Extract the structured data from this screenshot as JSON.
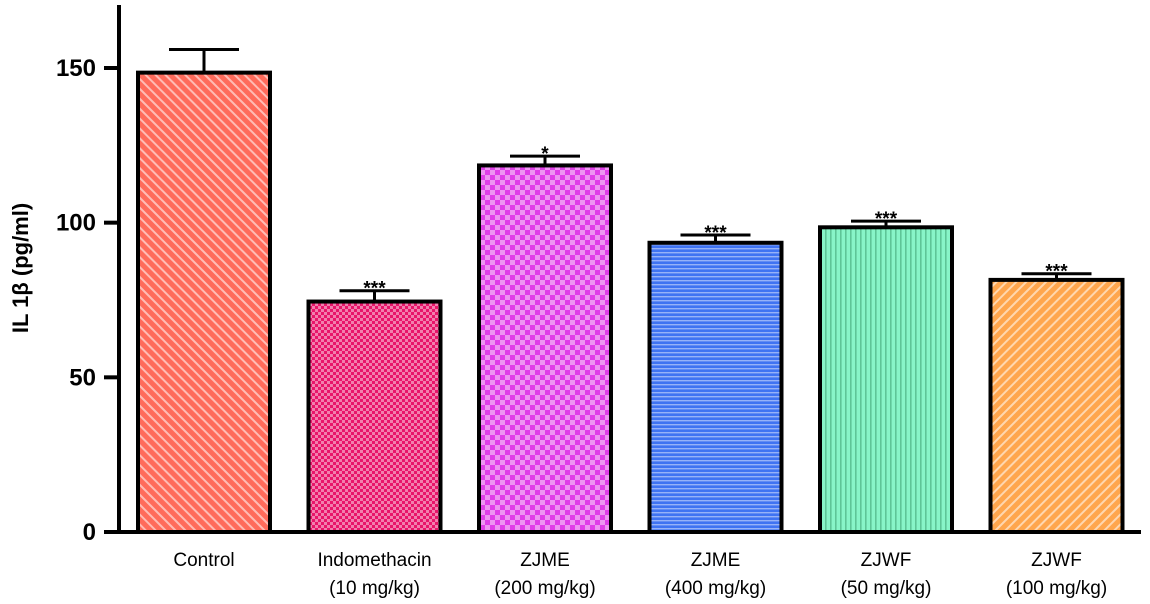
{
  "chart_data": {
    "type": "bar",
    "title": "",
    "xlabel": "",
    "ylabel": "IL 1β (pg/ml)",
    "ylim": [
      0,
      170
    ],
    "yticks": [
      0,
      50,
      100,
      150
    ],
    "categories": [
      [
        "Control"
      ],
      [
        "Indomethacin",
        "(10 mg/kg)"
      ],
      [
        "ZJME",
        "(200 mg/kg)"
      ],
      [
        "ZJME",
        "(400 mg/kg)"
      ],
      [
        "ZJWF",
        "(50 mg/kg)"
      ],
      [
        "ZJWF",
        "(100 mg/kg)"
      ]
    ],
    "values": [
      148.5,
      74.5,
      118.5,
      93.5,
      98.5,
      81.5
    ],
    "errors": [
      7.5,
      3.5,
      3,
      2.5,
      2,
      2
    ],
    "significance": [
      "",
      "***",
      "*",
      "***",
      "***",
      "***"
    ],
    "colors": [
      "#ff6b5b",
      "#e8156a",
      "#e03ee8",
      "#3f73f2",
      "#88f5c8",
      "#ffa64d"
    ],
    "patterns": [
      "diag-back",
      "check-fine",
      "check-coarse",
      "horizontal",
      "vertical",
      "diag-fwd"
    ],
    "grid": false,
    "legend": "none"
  }
}
